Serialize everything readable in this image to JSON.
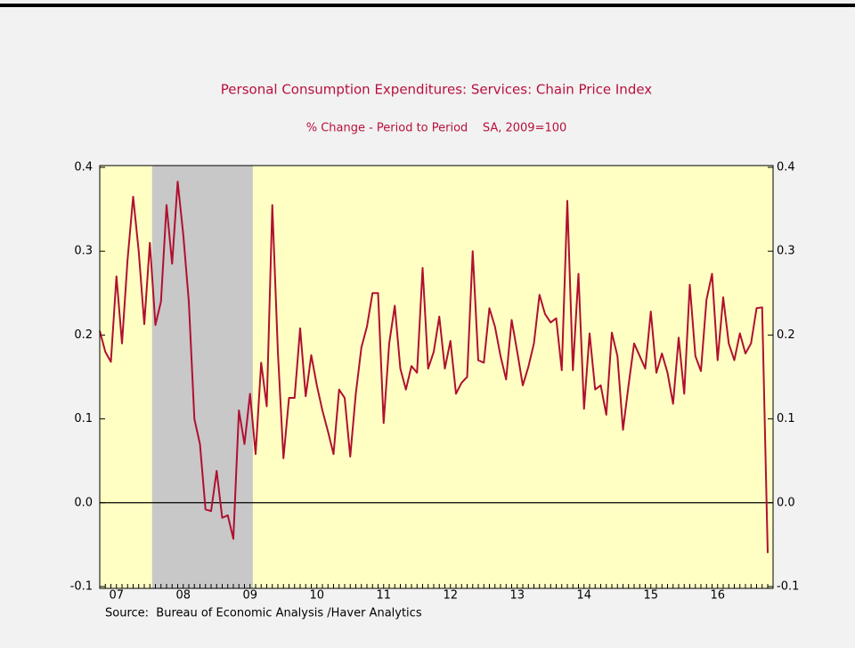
{
  "chart_data": {
    "type": "line",
    "title": "Personal Consumption Expenditures: Services: Chain Price Index",
    "subtitle": "% Change - Period to Period    SA, 2009=100",
    "source": "Source:  Bureau of Economic Analysis /Haver Analytics",
    "categories": [
      null,
      null,
      null,
      "07",
      null,
      null,
      null,
      null,
      null,
      null,
      null,
      null,
      null,
      null,
      null,
      "08",
      null,
      null,
      null,
      null,
      null,
      null,
      null,
      null,
      null,
      null,
      null,
      "09",
      null,
      null,
      null,
      null,
      null,
      null,
      null,
      null,
      null,
      null,
      null,
      "10",
      null,
      null,
      null,
      null,
      null,
      null,
      null,
      null,
      null,
      null,
      null,
      "11",
      null,
      null,
      null,
      null,
      null,
      null,
      null,
      null,
      null,
      null,
      null,
      "12",
      null,
      null,
      null,
      null,
      null,
      null,
      null,
      null,
      null,
      null,
      null,
      "13",
      null,
      null,
      null,
      null,
      null,
      null,
      null,
      null,
      null,
      null,
      null,
      "14",
      null,
      null,
      null,
      null,
      null,
      null,
      null,
      null,
      null,
      null,
      null,
      "15",
      null,
      null,
      null,
      null,
      null,
      null,
      null,
      null,
      null,
      null,
      null,
      "16",
      null,
      null,
      null,
      null,
      null,
      null,
      null,
      null,
      null
    ],
    "series": [
      {
        "color": "#b01030",
        "values": [
          0.205,
          0.18,
          0.168,
          0.27,
          0.19,
          0.29,
          0.365,
          0.3,
          0.213,
          0.31,
          0.212,
          0.24,
          0.355,
          0.285,
          0.383,
          0.32,
          0.24,
          0.1,
          0.07,
          -0.008,
          -0.01,
          0.038,
          -0.018,
          -0.015,
          -0.043,
          0.11,
          0.07,
          0.13,
          0.058,
          0.167,
          0.115,
          0.355,
          0.18,
          0.053,
          0.125,
          0.125,
          0.208,
          0.127,
          0.176,
          0.14,
          0.11,
          0.085,
          0.058,
          0.135,
          0.125,
          0.055,
          0.13,
          0.185,
          0.21,
          0.25,
          0.25,
          0.095,
          0.19,
          0.235,
          0.16,
          0.135,
          0.163,
          0.155,
          0.28,
          0.16,
          0.18,
          0.222,
          0.16,
          0.193,
          0.13,
          0.143,
          0.15,
          0.3,
          0.17,
          0.167,
          0.232,
          0.21,
          0.175,
          0.147,
          0.218,
          0.18,
          0.14,
          0.162,
          0.19,
          0.248,
          0.225,
          0.215,
          0.22,
          0.158,
          0.36,
          0.158,
          0.273,
          0.112,
          0.202,
          0.135,
          0.14,
          0.105,
          0.203,
          0.175,
          0.087,
          0.14,
          0.19,
          0.175,
          0.16,
          0.228,
          0.155,
          0.178,
          0.155,
          0.118,
          0.197,
          0.13,
          0.26,
          0.175,
          0.157,
          0.242,
          0.273,
          0.17,
          0.245,
          0.19,
          0.17,
          0.202,
          0.178,
          0.19,
          0.232,
          0.233,
          -0.06
        ]
      }
    ],
    "recession_shading": [
      9.4,
      27.5
    ],
    "ylim": [
      -0.1,
      0.4
    ],
    "yticks": [
      -0.1,
      {
        "value": 0,
        "label": "0.0"
      },
      0.1,
      0.2,
      0.3,
      0.4
    ],
    "y2ticks": [
      -0.1,
      {
        "value": 0,
        "label": "0.0"
      },
      0.1,
      0.2,
      0.3,
      0.4
    ],
    "plot_background": "#ffffc4",
    "shading_color": "#c8c8c8"
  }
}
